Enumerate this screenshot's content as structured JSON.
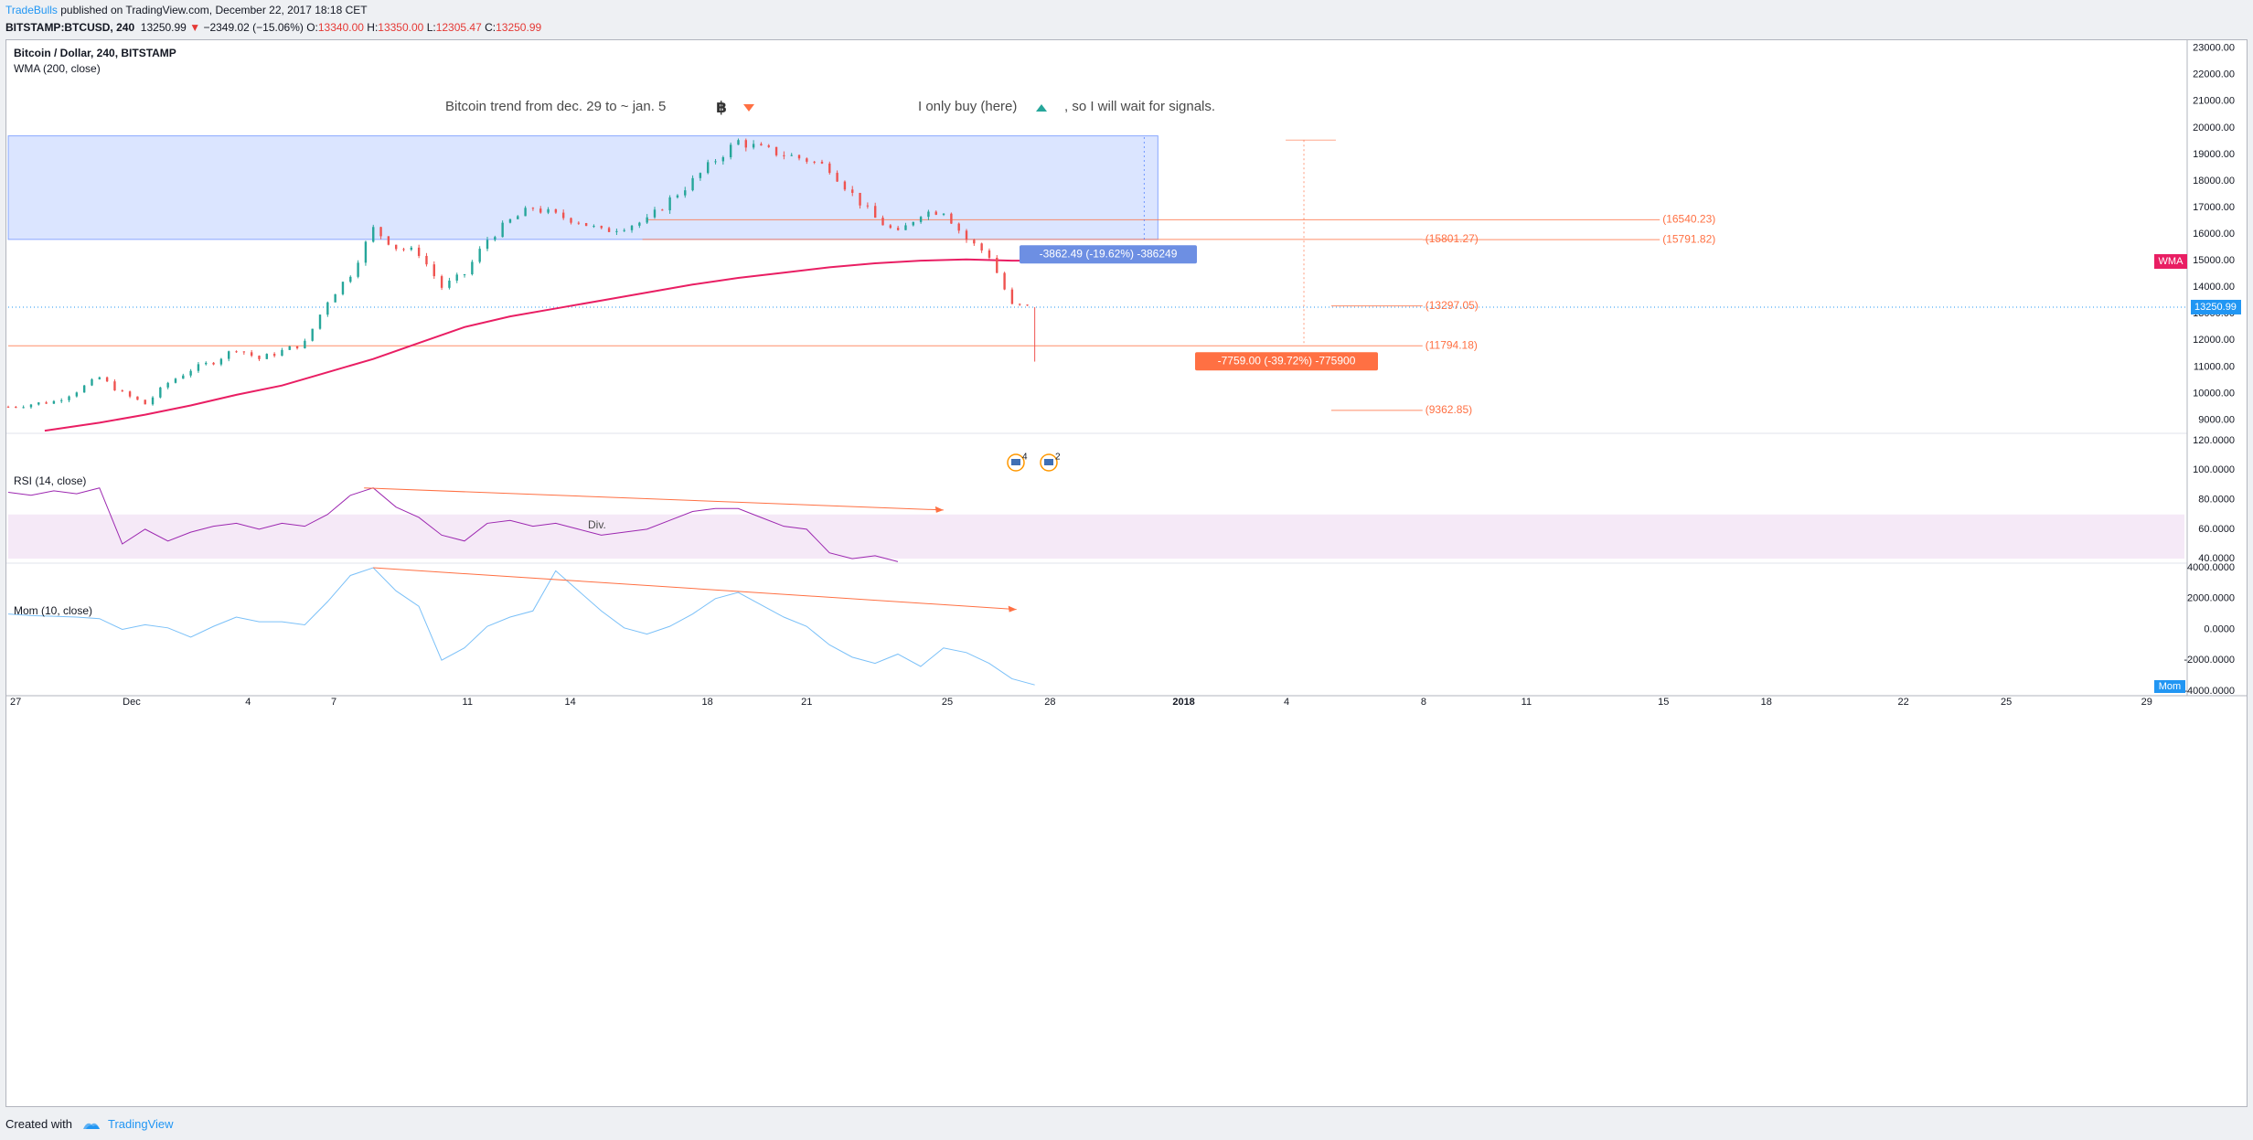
{
  "header": {
    "author": "TradeBulls",
    "published": " published on TradingView.com, December 22, 2017 18:18 CET"
  },
  "ticker": {
    "symbol": "BITSTAMP:BTCUSD, 240",
    "last": "13250.99",
    "change": "−2349.02 (−15.06%)",
    "o_label": "O:",
    "o": "13340.00",
    "h_label": "H:",
    "h": "13350.00",
    "l_label": "L:",
    "l": "12305.47",
    "c_label": "C:",
    "c": "13250.99"
  },
  "footer": {
    "created_with": "Created with",
    "brand": "TradingView"
  },
  "colors": {
    "up": "#26a69a",
    "down": "#ef5350",
    "wma": "#e91e63",
    "rsi": "#9c27b0",
    "mom": "#2196f3",
    "level": "#ff7043",
    "zone": "#2962ff",
    "price_line": "#2196f3"
  },
  "chart_data": {
    "type": "line",
    "title": "Bitcoin / Dollar, 240, BITSTAMP",
    "indicator_label": "WMA (200, close)",
    "notes": {
      "trend": "Bitcoin trend from dec. 29 to ~ jan. 5",
      "buy": "I only buy (here)",
      "wait": ", so I will wait for signals."
    },
    "x_ticks": [
      "27",
      "Dec",
      "4",
      "7",
      "11",
      "14",
      "18",
      "21",
      "25",
      "28",
      "2018",
      "4",
      "8",
      "11",
      "15",
      "18",
      "22",
      "25",
      "29"
    ],
    "price_axis": {
      "ylim": [
        8500,
        23300
      ],
      "ticks": [
        "9000.00",
        "10000.00",
        "11000.00",
        "12000.00",
        "13000.00",
        "14000.00",
        "15000.00",
        "16000.00",
        "17000.00",
        "18000.00",
        "19000.00",
        "20000.00",
        "21000.00",
        "22000.00",
        "23000.00"
      ]
    },
    "price_series": {
      "name": "BTCUSD",
      "x": [
        0,
        0.5,
        1,
        1.5,
        2,
        2.5,
        3,
        3.5,
        4,
        4.5,
        5,
        5.5,
        6,
        6.5,
        7,
        7.5,
        8,
        8.5,
        9,
        9.5,
        10,
        10.5,
        11,
        11.5,
        12,
        12.5,
        13,
        13.5,
        14,
        14.5,
        15,
        15.5,
        16,
        16.5,
        17,
        17.5,
        18,
        18.5,
        19,
        19.5,
        20,
        20.5,
        21,
        21.5,
        22,
        22.5
      ],
      "y": [
        9500,
        9600,
        9700,
        10100,
        10600,
        10000,
        9600,
        10400,
        10900,
        11200,
        11700,
        11300,
        11600,
        11900,
        13500,
        14500,
        16200,
        15500,
        15300,
        14000,
        14500,
        15800,
        16500,
        17000,
        16700,
        16500,
        16100,
        16300,
        16500,
        17300,
        18000,
        18800,
        19500,
        19200,
        19000,
        18800,
        18500,
        17500,
        16600,
        16000,
        16800,
        16900,
        15800,
        15200,
        13300,
        13251
      ]
    },
    "wma_series": {
      "name": "WMA (200, close)",
      "x": [
        0.8,
        2,
        3,
        4,
        5,
        6,
        7,
        8,
        9,
        10,
        11,
        12,
        13,
        14,
        15,
        16,
        17,
        18,
        19,
        20,
        21,
        22,
        22.5
      ],
      "y": [
        8600,
        8900,
        9200,
        9550,
        9950,
        10300,
        10800,
        11300,
        11900,
        12500,
        12900,
        13200,
        13500,
        13800,
        14100,
        14350,
        14550,
        14750,
        14900,
        15000,
        15050,
        15000,
        15000
      ]
    },
    "zone": {
      "x": [
        0,
        25.2
      ],
      "y": [
        15800,
        19700
      ]
    },
    "levels": [
      {
        "label": "(16540.23)",
        "value": 16540.23,
        "x": [
          14,
          36.2
        ]
      },
      {
        "label": "(15801.27)",
        "value": 15801.27,
        "x": [
          13.9,
          31
        ]
      },
      {
        "label": "(15791.82)",
        "value": 15791.82,
        "x": [
          31,
          36.2
        ]
      },
      {
        "label": "(13297.05)",
        "value": 13297.05,
        "x": [
          29,
          31
        ]
      },
      {
        "label": "(11794.18)",
        "value": 11794.18,
        "x": [
          0,
          31
        ]
      },
      {
        "label": "(9362.85)",
        "value": 9362.85,
        "x": [
          29,
          31
        ]
      }
    ],
    "measures": [
      {
        "label": "-3862.49 (-19.62%) -386249",
        "from": 19653,
        "to": 15790
      },
      {
        "label": "-7759.00 (-39.72%) -775900",
        "from": 19540,
        "to": 11794
      }
    ],
    "last_price": "13250.99",
    "wma_tag": "WMA",
    "mom_tag": "Mom",
    "event_counts": [
      "4",
      "2"
    ],
    "rsi": {
      "label": "RSI (14, close)",
      "ylim": [
        37,
        125
      ],
      "ticks": [
        "40.0000",
        "60.0000",
        "80.0000",
        "100.0000",
        "120.0000"
      ],
      "band": [
        40,
        70
      ],
      "annotation": "Div.",
      "x": [
        0,
        0.5,
        1,
        1.5,
        2,
        2.5,
        3,
        3.5,
        4,
        4.5,
        5,
        5.5,
        6,
        6.5,
        7,
        7.5,
        8,
        8.5,
        9,
        9.5,
        10,
        10.5,
        11,
        11.5,
        12,
        12.5,
        13,
        13.5,
        14,
        14.5,
        15,
        15.5,
        16,
        16.5,
        17,
        17.5,
        18,
        18.5,
        19,
        19.5
      ],
      "y": [
        85,
        83,
        86,
        84,
        88,
        50,
        60,
        52,
        58,
        62,
        64,
        60,
        64,
        62,
        70,
        83,
        88,
        75,
        68,
        56,
        52,
        64,
        66,
        62,
        64,
        60,
        56,
        58,
        60,
        66,
        72,
        74,
        74,
        68,
        62,
        60,
        44,
        40,
        42,
        38
      ]
    },
    "momentum": {
      "label": "Mom (10, close)",
      "ylim": [
        -4300,
        4300
      ],
      "ticks": [
        "-4000.0000",
        "-2000.0000",
        "0.0000",
        "2000.0000",
        "4000.0000"
      ],
      "x": [
        0,
        0.5,
        1,
        1.5,
        2,
        2.5,
        3,
        3.5,
        4,
        4.5,
        5,
        5.5,
        6,
        6.5,
        7,
        7.5,
        8,
        8.5,
        9,
        9.5,
        10,
        10.5,
        11,
        11.5,
        12,
        12.5,
        13,
        13.5,
        14,
        14.5,
        15,
        15.5,
        16,
        16.5,
        17,
        17.5,
        18,
        18.5,
        19,
        19.5,
        20,
        20.5,
        21,
        21.5,
        22,
        22.5
      ],
      "y": [
        1000,
        900,
        850,
        800,
        700,
        0,
        300,
        100,
        -500,
        200,
        800,
        500,
        500,
        300,
        1800,
        3500,
        4000,
        2500,
        1500,
        -2000,
        -1200,
        200,
        800,
        1200,
        3800,
        2500,
        1200,
        100,
        -300,
        200,
        1000,
        2000,
        2400,
        1600,
        800,
        200,
        -1000,
        -1800,
        -2200,
        -1600,
        -2400,
        -1200,
        -1500,
        -2200,
        -3200,
        -3600
      ]
    }
  }
}
